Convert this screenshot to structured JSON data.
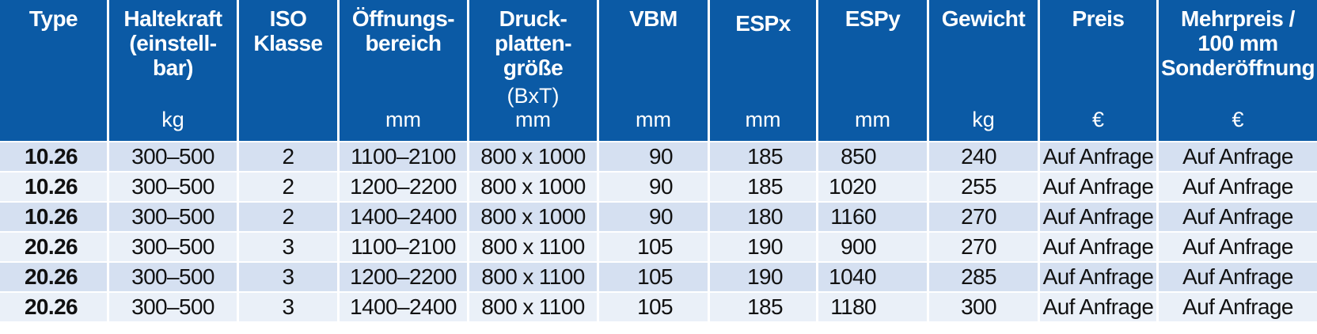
{
  "headers": [
    {
      "lines": [
        "Type"
      ],
      "unit": ""
    },
    {
      "lines": [
        "Haltekraft",
        "(einstell-",
        "bar)"
      ],
      "unit": "kg"
    },
    {
      "lines": [
        "ISO",
        "Klasse"
      ],
      "unit": ""
    },
    {
      "lines": [
        "Öffnungs-",
        "bereich"
      ],
      "unit": "mm"
    },
    {
      "lines": [
        "Druck-",
        "platten-",
        "größe"
      ],
      "sub": "(BxT)",
      "unit": "mm"
    },
    {
      "lines": [
        "VBM"
      ],
      "unit": "mm"
    },
    {
      "lines": [
        "ESPx"
      ],
      "unit": "mm"
    },
    {
      "lines": [
        "ESPy"
      ],
      "unit": "mm"
    },
    {
      "lines": [
        "Gewicht"
      ],
      "unit": "kg"
    },
    {
      "lines": [
        "Preis"
      ],
      "unit": "€"
    },
    {
      "lines": [
        "Mehrpreis /",
        "100 mm",
        "Sonderöffnung"
      ],
      "unit": "€"
    }
  ],
  "rows": [
    [
      "10.26",
      "300–500",
      "2",
      "1100–2100",
      "800 x 1000",
      "90",
      "185",
      "850",
      "240",
      "Auf Anfrage",
      "Auf Anfrage"
    ],
    [
      "10.26",
      "300–500",
      "2",
      "1200–2200",
      "800 x 1000",
      "90",
      "185",
      "1020",
      "255",
      "Auf Anfrage",
      "Auf Anfrage"
    ],
    [
      "10.26",
      "300–500",
      "2",
      "1400–2400",
      "800 x 1000",
      "90",
      "180",
      "1160",
      "270",
      "Auf Anfrage",
      "Auf Anfrage"
    ],
    [
      "20.26",
      "300–500",
      "3",
      "1100–2100",
      "800 x 1100",
      "105",
      "190",
      "900",
      "270",
      "Auf Anfrage",
      "Auf Anfrage"
    ],
    [
      "20.26",
      "300–500",
      "3",
      "1200–2200",
      "800 x 1100",
      "105",
      "190",
      "1040",
      "285",
      "Auf Anfrage",
      "Auf Anfrage"
    ],
    [
      "20.26",
      "300–500",
      "3",
      "1400–2400",
      "800 x 1100",
      "105",
      "185",
      "1180",
      "300",
      "Auf Anfrage",
      "Auf Anfrage"
    ]
  ],
  "colors": {
    "header_bg": "#0b5aa5",
    "row_dark": "#d5e0f1",
    "row_light": "#eaf0f8"
  }
}
